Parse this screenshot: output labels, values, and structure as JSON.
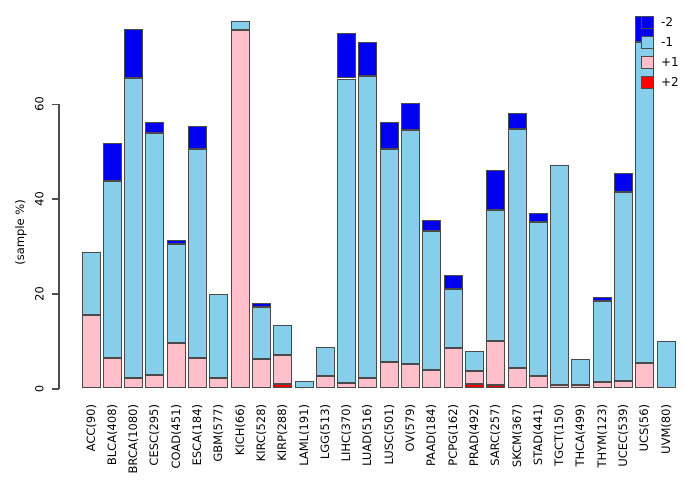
{
  "figure": {
    "background": "#ffffff",
    "axis_color": "#4d4d4d",
    "bar_border_color": "#4a4a4a"
  },
  "chart_data": {
    "type": "bar",
    "stacked": true,
    "title": "",
    "xlabel": "",
    "ylabel": "(sample %)",
    "ylim": [
      0,
      80
    ],
    "yticks": [
      0,
      20,
      40,
      60
    ],
    "grid": false,
    "legend_position": "top-right",
    "stack_order_bottom_to_top": [
      "+2",
      "+1",
      "-1",
      "-2"
    ],
    "categories": [
      "ACC(90)",
      "BLCA(408)",
      "BRCA(1080)",
      "CESC(295)",
      "COAD(451)",
      "ESCA(184)",
      "GBM(577)",
      "KICH(66)",
      "KIRC(528)",
      "KIRP(288)",
      "LAML(191)",
      "LGG(513)",
      "LIHC(370)",
      "LUAD(516)",
      "LUSC(501)",
      "OV(579)",
      "PAAD(184)",
      "PCPG(162)",
      "PRAD(492)",
      "SARC(257)",
      "SKCM(367)",
      "STAD(441)",
      "TGCT(150)",
      "THCA(499)",
      "THYM(123)",
      "UCEC(539)",
      "UCS(56)",
      "UVM(80)"
    ],
    "series": [
      {
        "name": "+2",
        "color": "#ff0000",
        "values": [
          0,
          0,
          0,
          0,
          0,
          0,
          0,
          0,
          0,
          0.8,
          0,
          0,
          0,
          0,
          0,
          0,
          0,
          0,
          0.9,
          0.6,
          0,
          0,
          0,
          0,
          0,
          0,
          0,
          0
        ]
      },
      {
        "name": "+1",
        "color": "#ffc0cb",
        "values": [
          15.5,
          6.3,
          2.1,
          2.7,
          9.5,
          6.4,
          2.2,
          75.5,
          6.1,
          6.2,
          0,
          2.5,
          1.1,
          2.2,
          5.4,
          5.0,
          3.8,
          8.5,
          2.6,
          9.3,
          4.3,
          2.6,
          0.6,
          0.6,
          1.3,
          1.5,
          5.3,
          0
        ]
      },
      {
        "name": "-1",
        "color": "#87ceeb",
        "values": [
          13.3,
          37.4,
          63.3,
          51.0,
          20.9,
          44.1,
          17.7,
          2.0,
          11.0,
          6.2,
          1.5,
          6.1,
          64.2,
          63.6,
          45.1,
          49.5,
          29.3,
          12.3,
          4.3,
          27.7,
          50.4,
          32.4,
          46.5,
          5.5,
          17.1,
          39.8,
          67.7,
          9.9
        ]
      },
      {
        "name": "-2",
        "color": "#0000f0",
        "values": [
          0,
          8.0,
          10.3,
          2.4,
          0.9,
          4.7,
          0,
          0,
          0.8,
          0,
          0,
          0,
          9.6,
          7.2,
          5.6,
          5.6,
          2.3,
          3.1,
          0,
          8.5,
          3.3,
          1.9,
          0,
          0,
          0.9,
          4.1,
          5.4,
          0
        ]
      }
    ],
    "legend": [
      {
        "label": "-2",
        "color": "#0000f0"
      },
      {
        "label": "-1",
        "color": "#87ceeb"
      },
      {
        "label": "+1",
        "color": "#ffc0cb"
      },
      {
        "label": "+2",
        "color": "#ff0000"
      }
    ]
  }
}
